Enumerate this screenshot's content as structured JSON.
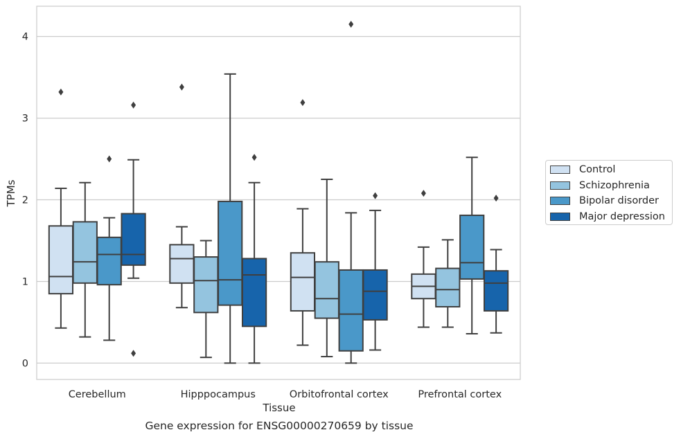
{
  "chart_data": {
    "type": "boxplot",
    "xlabel": "Tissue",
    "ylabel": "TPMs",
    "caption": "Gene expression for ENSG00000270659 by tissue",
    "ylim": [
      -0.2,
      4.37
    ],
    "yticks": [
      0,
      1,
      2,
      3,
      4
    ],
    "grid": "horizontal",
    "legend_position": "right",
    "categories": [
      "Cerebellum",
      "Hipppocampus",
      "Orbitofrontal cortex",
      "Prefrontal cortex"
    ],
    "series": [
      {
        "name": "Control",
        "color": "#d0e1f2",
        "boxes": [
          {
            "whislo": 0.43,
            "q1": 0.85,
            "med": 1.06,
            "q3": 1.68,
            "whishi": 2.14,
            "fliers": [
              3.32
            ]
          },
          {
            "whislo": 0.68,
            "q1": 0.98,
            "med": 1.28,
            "q3": 1.45,
            "whishi": 1.67,
            "fliers": [
              3.38
            ]
          },
          {
            "whislo": 0.22,
            "q1": 0.64,
            "med": 1.05,
            "q3": 1.35,
            "whishi": 1.89,
            "fliers": [
              3.19
            ]
          },
          {
            "whislo": 0.44,
            "q1": 0.79,
            "med": 0.94,
            "q3": 1.09,
            "whishi": 1.42,
            "fliers": [
              2.08
            ]
          }
        ]
      },
      {
        "name": "Schizophrenia",
        "color": "#94c4df",
        "boxes": [
          {
            "whislo": 0.32,
            "q1": 0.98,
            "med": 1.24,
            "q3": 1.73,
            "whishi": 2.21,
            "fliers": []
          },
          {
            "whislo": 0.07,
            "q1": 0.62,
            "med": 1.01,
            "q3": 1.3,
            "whishi": 1.5,
            "fliers": []
          },
          {
            "whislo": 0.08,
            "q1": 0.55,
            "med": 0.79,
            "q3": 1.24,
            "whishi": 2.25,
            "fliers": []
          },
          {
            "whislo": 0.44,
            "q1": 0.69,
            "med": 0.9,
            "q3": 1.16,
            "whishi": 1.51,
            "fliers": []
          }
        ]
      },
      {
        "name": "Bipolar disorder",
        "color": "#4a98c9",
        "boxes": [
          {
            "whislo": 0.28,
            "q1": 0.96,
            "med": 1.33,
            "q3": 1.54,
            "whishi": 1.78,
            "fliers": [
              2.5
            ]
          },
          {
            "whislo": 0.0,
            "q1": 0.71,
            "med": 1.02,
            "q3": 1.98,
            "whishi": 3.54,
            "fliers": []
          },
          {
            "whislo": 0.0,
            "q1": 0.15,
            "med": 0.6,
            "q3": 1.14,
            "whishi": 1.84,
            "fliers": [
              4.15
            ]
          },
          {
            "whislo": 0.36,
            "q1": 1.03,
            "med": 1.23,
            "q3": 1.81,
            "whishi": 2.52,
            "fliers": []
          }
        ]
      },
      {
        "name": "Major depression",
        "color": "#1764ab",
        "boxes": [
          {
            "whislo": 1.04,
            "q1": 1.2,
            "med": 1.33,
            "q3": 1.83,
            "whishi": 2.49,
            "fliers": [
              3.16,
              0.12
            ]
          },
          {
            "whislo": 0.0,
            "q1": 0.45,
            "med": 1.08,
            "q3": 1.28,
            "whishi": 2.21,
            "fliers": [
              2.52
            ]
          },
          {
            "whislo": 0.16,
            "q1": 0.53,
            "med": 0.88,
            "q3": 1.14,
            "whishi": 1.87,
            "fliers": [
              2.05
            ]
          },
          {
            "whislo": 0.37,
            "q1": 0.64,
            "med": 0.98,
            "q3": 1.13,
            "whishi": 1.39,
            "fliers": [
              2.02
            ]
          }
        ]
      }
    ]
  }
}
